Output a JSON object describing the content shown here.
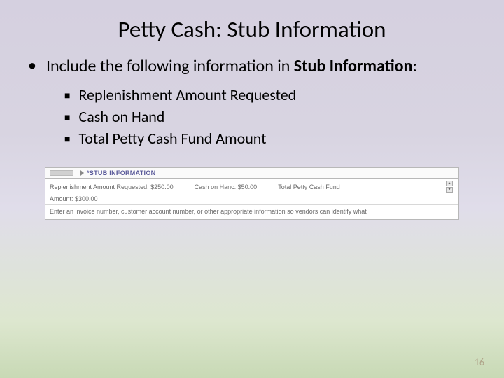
{
  "title": "Petty Cash: Stub Information",
  "main_bullet_prefix": "Include the following information in ",
  "main_bullet_bold": "Stub Information",
  "main_bullet_suffix": ":",
  "sub_bullets": {
    "b0": "Replenishment Amount Requested",
    "b1": "Cash on Hand",
    "b2": "Total Petty Cash Fund Amount"
  },
  "embed": {
    "header": "*STUB INFORMATION",
    "line1_a": "Replenishment Amount Requested: $250.00",
    "line1_b": "Cash on Hanc: $50.00",
    "line1_c": "Total Petty Cash Fund",
    "line2": "Amount: $300.00",
    "hint": "Enter an invoice number, customer account number, or other appropriate information so vendors can identify what"
  },
  "page_number": "16"
}
